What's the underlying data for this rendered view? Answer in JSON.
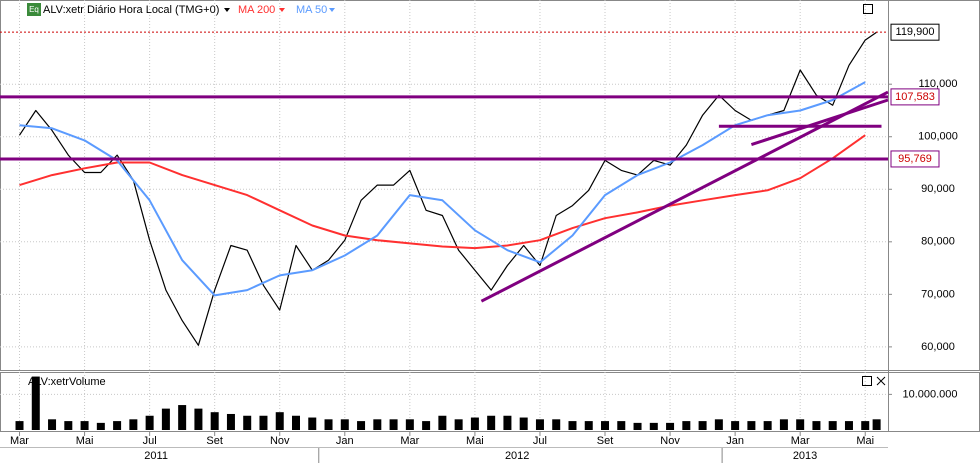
{
  "chart_data": [
    {
      "type": "line",
      "series": [
        {
          "name": "ALV:xetr Diário Hora Local (TMG+0)",
          "color": "#000000",
          "x": [
            0,
            0.5,
            1,
            1.5,
            2,
            2.5,
            3,
            3.5,
            4,
            4.5,
            5,
            5.5,
            6,
            6.5,
            7,
            7.5,
            8,
            8.5,
            9,
            9.5,
            10,
            10.5,
            11,
            11.5,
            12,
            12.5,
            13,
            13.5,
            14,
            14.5,
            15,
            15.5,
            16,
            16.5,
            17,
            17.5,
            18,
            18.5,
            19,
            19.5,
            20,
            20.5,
            21,
            21.5,
            22,
            22.5,
            23,
            23.5,
            24,
            24.5,
            25,
            25.5,
            26,
            26.35
          ],
          "values": [
            100300,
            105000,
            101200,
            96500,
            93200,
            93200,
            96500,
            91700,
            80300,
            70800,
            65000,
            60300,
            70800,
            79300,
            78400,
            71700,
            67000,
            79300,
            74600,
            76500,
            80300,
            87900,
            90800,
            90800,
            93600,
            86000,
            85000,
            78400,
            74600,
            70800,
            75500,
            79300,
            75500,
            85000,
            86900,
            89800,
            95500,
            93600,
            92700,
            95500,
            94600,
            98400,
            104100,
            107900,
            105000,
            103100,
            104100,
            105000,
            112700,
            107900,
            106000,
            113600,
            118400,
            119900
          ]
        },
        {
          "name": "MA 200",
          "color": "#ff3030",
          "x": [
            0,
            1,
            2,
            3,
            4,
            5,
            6,
            7,
            8,
            9,
            10,
            11,
            12,
            13,
            14,
            15,
            16,
            17,
            18,
            19,
            20,
            21,
            22,
            23,
            24,
            25,
            26
          ],
          "values": [
            90800,
            92700,
            94000,
            95100,
            95100,
            92700,
            90800,
            88900,
            86000,
            83100,
            81200,
            80300,
            79700,
            79100,
            78800,
            79300,
            80300,
            82600,
            84500,
            85600,
            86900,
            87900,
            88900,
            89800,
            92100,
            95900,
            100300
          ]
        },
        {
          "name": "MA 50",
          "color": "#5b9bff",
          "x": [
            0,
            1,
            2,
            3,
            4,
            5,
            6,
            7,
            8,
            9,
            10,
            11,
            12,
            13,
            14,
            15,
            16,
            17,
            18,
            19,
            20,
            21,
            22,
            23,
            24,
            25,
            26
          ],
          "values": [
            102200,
            101600,
            99300,
            95500,
            87900,
            76500,
            69800,
            70800,
            73600,
            74600,
            77400,
            81200,
            88900,
            87900,
            82200,
            78400,
            76100,
            81200,
            88900,
            92700,
            95100,
            98400,
            102200,
            104100,
            105000,
            107000,
            110400
          ]
        }
      ],
      "xlim": [
        -0.6,
        26.7
      ],
      "ylim": [
        55600,
        122600
      ],
      "yticks": [
        {
          "value": 60000,
          "label": "60,000"
        },
        {
          "value": 70000,
          "label": "70,000"
        },
        {
          "value": 80000,
          "label": "80,000"
        },
        {
          "value": 90000,
          "label": "90,000"
        },
        {
          "value": 100000,
          "label": "100,000"
        },
        {
          "value": 110000,
          "label": "110,000"
        }
      ],
      "levels": [
        {
          "value": 119900,
          "label": "119,900",
          "color": "#cc0000",
          "label_color": "#000000",
          "dotted": true
        },
        {
          "value": 107583,
          "label": "107,583",
          "color": "#800080",
          "label_color": "#cc0000",
          "dotted": false
        },
        {
          "value": 95769,
          "label": "95,769",
          "color": "#800080",
          "label_color": "#cc0000",
          "dotted": false
        }
      ],
      "trendlines": [
        {
          "x": [
            21.5,
            26.5
          ],
          "values": [
            102000,
            102000
          ]
        },
        {
          "x": [
            14.2,
            26.7
          ],
          "values": [
            68700,
            108500
          ]
        },
        {
          "x": [
            22.5,
            26.7
          ],
          "values": [
            98500,
            107000
          ]
        }
      ],
      "grid": true
    },
    {
      "type": "bar",
      "title": "ALV:xetrVolume",
      "color": "#000000",
      "x": [
        0,
        0.5,
        1,
        1.5,
        2,
        2.5,
        3,
        3.5,
        4,
        4.5,
        5,
        5.5,
        6,
        6.5,
        7,
        7.5,
        8,
        8.5,
        9,
        9.5,
        10,
        10.5,
        11,
        11.5,
        12,
        12.5,
        13,
        13.5,
        14,
        14.5,
        15,
        15.5,
        16,
        16.5,
        17,
        17.5,
        18,
        18.5,
        19,
        19.5,
        20,
        20.5,
        21,
        21.5,
        22,
        22.5,
        23,
        23.5,
        24,
        24.5,
        25,
        25.5,
        26,
        26.35
      ],
      "values": [
        2500000,
        15000000,
        3000000,
        2500000,
        2500000,
        2000000,
        2500000,
        3000000,
        4000000,
        6000000,
        7000000,
        6000000,
        5000000,
        4500000,
        4000000,
        4000000,
        5000000,
        4000000,
        3500000,
        3000000,
        3000000,
        2500000,
        3000000,
        3000000,
        3000000,
        2500000,
        4000000,
        3000000,
        3500000,
        4000000,
        4000000,
        3500000,
        3000000,
        3000000,
        2500000,
        2500000,
        2500000,
        2500000,
        2000000,
        2000000,
        2000000,
        2500000,
        2500000,
        3000000,
        2500000,
        2500000,
        2500000,
        3000000,
        3000000,
        2500000,
        2500000,
        2500000,
        2500000,
        3000000
      ],
      "ylim": [
        0,
        16000000
      ],
      "yticks": [
        {
          "value": 10000000,
          "label": "10.000.000"
        }
      ],
      "xticks": [
        {
          "value": 0,
          "label": "Mar"
        },
        {
          "value": 2,
          "label": "Mai"
        },
        {
          "value": 4,
          "label": "Jul"
        },
        {
          "value": 6,
          "label": "Set"
        },
        {
          "value": 8,
          "label": "Nov"
        },
        {
          "value": 10,
          "label": "Jan"
        },
        {
          "value": 12,
          "label": "Mar"
        },
        {
          "value": 14,
          "label": "Mai"
        },
        {
          "value": 16,
          "label": "Jul"
        },
        {
          "value": 18,
          "label": "Set"
        },
        {
          "value": 20,
          "label": "Nov"
        },
        {
          "value": 22,
          "label": "Jan"
        },
        {
          "value": 24,
          "label": "Mar"
        },
        {
          "value": 26,
          "label": "Mai"
        }
      ],
      "year_ticks": [
        {
          "value": 4.2,
          "label": "2011"
        },
        {
          "value": 15.3,
          "label": "2012"
        },
        {
          "value": 24.15,
          "label": "2013"
        }
      ],
      "year_bounds": [
        9.2,
        21.6
      ]
    }
  ]
}
